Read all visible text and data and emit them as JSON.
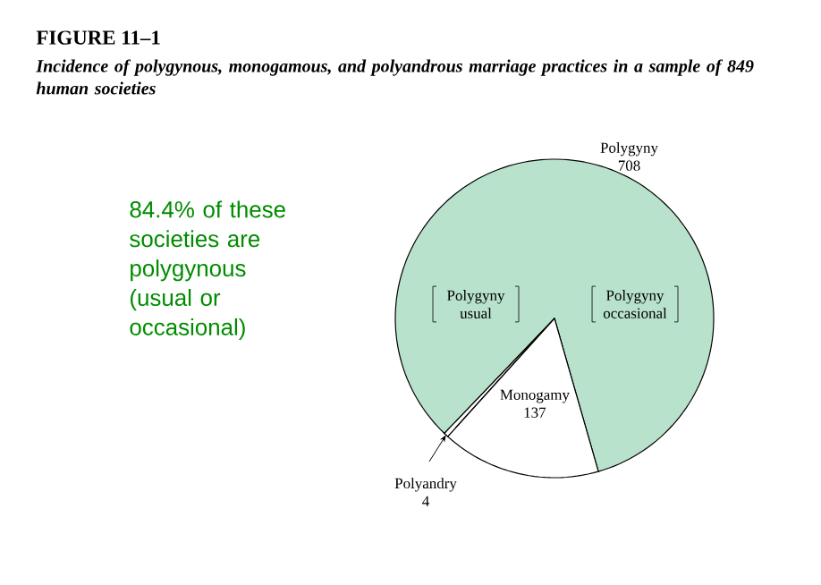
{
  "chart_data": {
    "type": "pie",
    "title": "FIGURE 11–1",
    "subtitle": "Incidence of polygynous, monogamous, and polyandrous marriage practices in a sample of 849 human societies",
    "categories": [
      "Polygyny",
      "Polyandry",
      "Monogamy"
    ],
    "values": [
      708,
      4,
      137
    ],
    "value_labels": [
      "708",
      "4",
      "137"
    ],
    "colors": [
      "#b8e2cc",
      "#ffffff",
      "#ffffff"
    ],
    "annotations": [
      "84.4% of these societies are polygynous (usual or occasional)",
      "Polygyny usual",
      "Polygyny occasional"
    ]
  }
}
